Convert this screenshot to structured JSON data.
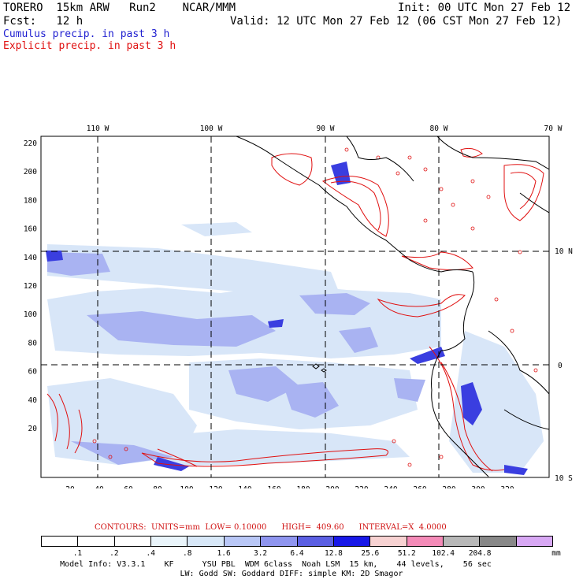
{
  "header": {
    "model": "TORERO  15km ARW   Run2    NCAR/MMM",
    "init": "Init: 00 UTC Mon 27 Feb 12",
    "fcst": "Fcst:   12 h",
    "valid": "Valid: 12 UTC Mon 27 Feb 12 (06 CST Mon 27 Feb 12)",
    "cumulus_label": "Cumulus precip. in past 3 h",
    "explicit_label": "Explicit precip. in past 3 h"
  },
  "map": {
    "lon_labels": [
      "110 W",
      "100 W",
      "90 W",
      "80 W",
      "70 W"
    ],
    "lat_labels": [
      "10 N",
      "0",
      "10 S"
    ],
    "y_ticks": [
      "220",
      "200",
      "180",
      "160",
      "140",
      "120",
      "100",
      "80",
      "60",
      "40",
      "20"
    ],
    "x_ticks": [
      "20",
      "40",
      "60",
      "80",
      "100",
      "120",
      "140",
      "160",
      "180",
      "200",
      "220",
      "240",
      "260",
      "280",
      "300",
      "320"
    ]
  },
  "contours_line": "CONTOURS:  UNITS=mm  LOW= 0.10000      HIGH=  409.60      INTERVAL=X  4.0000",
  "colorbar": {
    "labels": [
      ".1",
      ".2",
      ".4",
      ".8",
      "1.6",
      "3.2",
      "6.4",
      "12.8",
      "25.6",
      "51.2",
      "102.4",
      "204.8"
    ],
    "unit": "mm",
    "colors": [
      "#ffffff",
      "#ffffff",
      "#ffffff",
      "#eaf5fb",
      "#d8e8f8",
      "#b9c7f6",
      "#8f95ef",
      "#5b5fe3",
      "#1818e8",
      "#f7d2d2",
      "#f48bb8",
      "#b8b8b8",
      "#888888",
      "#d8a8f4"
    ]
  },
  "footer": {
    "line1": "Model Info: V3.3.1    KF      YSU PBL  WDM 6class  Noah LSM  15 km,    44 levels,    56 sec",
    "line2": "LW: Godd SW: Goddard DIFF: simple KM: 2D Smagor"
  }
}
